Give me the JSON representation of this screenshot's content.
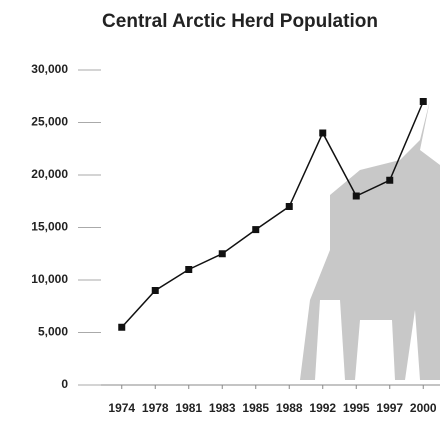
{
  "chart_data": {
    "type": "line",
    "title": "Central Arctic Herd Population",
    "categories": [
      "1974",
      "1978",
      "1981",
      "1983",
      "1985",
      "1988",
      "1992",
      "1995",
      "1997",
      "2000"
    ],
    "values": [
      5500,
      9000,
      11000,
      12500,
      14800,
      17000,
      24000,
      18000,
      19500,
      27000
    ],
    "color": "#111111",
    "ylim": [
      0,
      30000
    ],
    "yticks": [
      0,
      {
        "value": 5000,
        "label": "5,000"
      },
      {
        "value": 10000,
        "label": "10,000"
      },
      {
        "value": 15000,
        "label": "15,000"
      },
      {
        "value": 20000,
        "label": "20,000"
      },
      {
        "value": 25000,
        "label": "25,000"
      },
      {
        "value": 30000,
        "label": "30,000"
      }
    ],
    "grid": false
  }
}
